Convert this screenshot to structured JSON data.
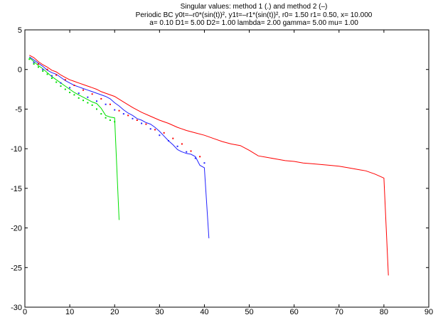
{
  "chart_data": {
    "type": "line",
    "title_lines": [
      "Singular values: method 1 (.) and method 2 (–)",
      "Periodic BC y0t=–r0*(sin(t))², y1t=–r1*(sin(t))²,   r0= 1.50   r1= 0.50,  x= 10.000",
      "a= 0.10  D1= 5.00  D2= 1.00  lambda= 2.00  gamma= 5.00   mu= 1.00"
    ],
    "xlim": [
      0,
      90
    ],
    "ylim": [
      -30,
      5
    ],
    "xticks": [
      0,
      10,
      20,
      30,
      40,
      50,
      60,
      70,
      80,
      90
    ],
    "yticks": [
      5,
      0,
      -5,
      -10,
      -15,
      -20,
      -25,
      -30
    ],
    "grid": false,
    "series": [
      {
        "color": "#00e000",
        "style": "line",
        "x": [
          1,
          2,
          3,
          4,
          5,
          6,
          7,
          8,
          9,
          10,
          11,
          12,
          13,
          14,
          15,
          16,
          17,
          18,
          19,
          20,
          21
        ],
        "y": [
          1.5,
          1.0,
          0.5,
          0.1,
          -0.4,
          -0.9,
          -1.3,
          -1.7,
          -2.1,
          -2.5,
          -2.9,
          -3.2,
          -3.5,
          -3.8,
          -4.1,
          -4.3,
          -4.9,
          -5.8,
          -6.0,
          -6.1,
          -19.0
        ]
      },
      {
        "color": "#00e000",
        "style": "dots",
        "x": [
          1,
          2,
          3,
          4,
          5,
          6,
          7,
          8,
          9,
          10,
          11,
          12,
          13,
          14,
          15,
          16,
          17,
          18,
          19,
          20
        ],
        "y": [
          1.3,
          0.7,
          0.3,
          -0.2,
          -0.6,
          -1.1,
          -1.6,
          -2.1,
          -2.5,
          -2.9,
          -3.2,
          -3.6,
          -3.9,
          -4.2,
          -4.5,
          -5.0,
          -5.6,
          -6.1,
          -6.4,
          -6.6
        ]
      },
      {
        "color": "#2222ff",
        "style": "line",
        "x": [
          1,
          2,
          3,
          4,
          5,
          6,
          7,
          8,
          9,
          10,
          11,
          12,
          13,
          14,
          15,
          16,
          17,
          18,
          19,
          20,
          21,
          22,
          23,
          24,
          25,
          26,
          27,
          28,
          29,
          30,
          31,
          32,
          33,
          34,
          35,
          36,
          37,
          38,
          39,
          40,
          41
        ],
        "y": [
          1.6,
          1.2,
          0.8,
          0.4,
          -0.1,
          -0.4,
          -0.6,
          -1.0,
          -1.4,
          -1.7,
          -2.0,
          -2.2,
          -2.4,
          -2.6,
          -2.8,
          -3.0,
          -3.2,
          -3.4,
          -3.7,
          -4.2,
          -4.6,
          -5.1,
          -5.5,
          -5.8,
          -6.2,
          -6.4,
          -6.7,
          -6.9,
          -7.3,
          -7.8,
          -8.4,
          -9.0,
          -9.5,
          -10.1,
          -10.4,
          -10.6,
          -10.7,
          -11.0,
          -12.1,
          -12.4,
          -21.3
        ]
      },
      {
        "color": "#2222ff",
        "style": "dots",
        "x": [
          2,
          4,
          6,
          8,
          10,
          12,
          14,
          16,
          18,
          20,
          22,
          24,
          26,
          28,
          30,
          32,
          34,
          36,
          38,
          40
        ],
        "y": [
          0.9,
          0.0,
          -0.8,
          -1.7,
          -2.3,
          -3.0,
          -3.5,
          -4.0,
          -4.4,
          -5.1,
          -5.6,
          -6.2,
          -6.8,
          -7.5,
          -8.3,
          -9.0,
          -9.7,
          -10.4,
          -11.2,
          -11.8
        ]
      },
      {
        "color": "#ff0000",
        "style": "line",
        "x": [
          1,
          2,
          3,
          4,
          5,
          6,
          7,
          8,
          9,
          10,
          11,
          12,
          13,
          14,
          15,
          16,
          17,
          18,
          19,
          20,
          22,
          24,
          26,
          28,
          30,
          32,
          34,
          36,
          38,
          40,
          42,
          44,
          46,
          48,
          50,
          52,
          54,
          56,
          58,
          60,
          62,
          64,
          66,
          68,
          70,
          72,
          74,
          76,
          78,
          80,
          81
        ],
        "y": [
          1.8,
          1.5,
          1.0,
          0.6,
          0.3,
          -0.1,
          -0.3,
          -0.7,
          -1.0,
          -1.3,
          -1.5,
          -1.7,
          -1.9,
          -2.1,
          -2.3,
          -2.5,
          -2.8,
          -3.0,
          -3.2,
          -3.4,
          -4.1,
          -4.8,
          -5.4,
          -5.9,
          -6.4,
          -6.8,
          -7.3,
          -7.7,
          -8.0,
          -8.3,
          -8.7,
          -9.1,
          -9.4,
          -9.6,
          -10.2,
          -10.9,
          -11.1,
          -11.3,
          -11.5,
          -11.6,
          -11.8,
          -11.9,
          -12.0,
          -12.1,
          -12.2,
          -12.4,
          -12.6,
          -12.8,
          -13.2,
          -13.7,
          -26.0
        ]
      },
      {
        "color": "#ff0000",
        "style": "dots",
        "x": [
          3,
          5,
          7,
          9,
          11,
          13,
          15,
          17,
          19,
          21,
          23,
          25,
          27,
          29,
          31,
          33,
          35,
          37,
          39
        ],
        "y": [
          0.7,
          0.0,
          -0.7,
          -1.3,
          -2.0,
          -2.6,
          -3.1,
          -3.7,
          -4.4,
          -5.2,
          -5.8,
          -6.4,
          -6.9,
          -7.6,
          -8.0,
          -8.7,
          -9.4,
          -10.3,
          -11.0
        ]
      }
    ]
  }
}
